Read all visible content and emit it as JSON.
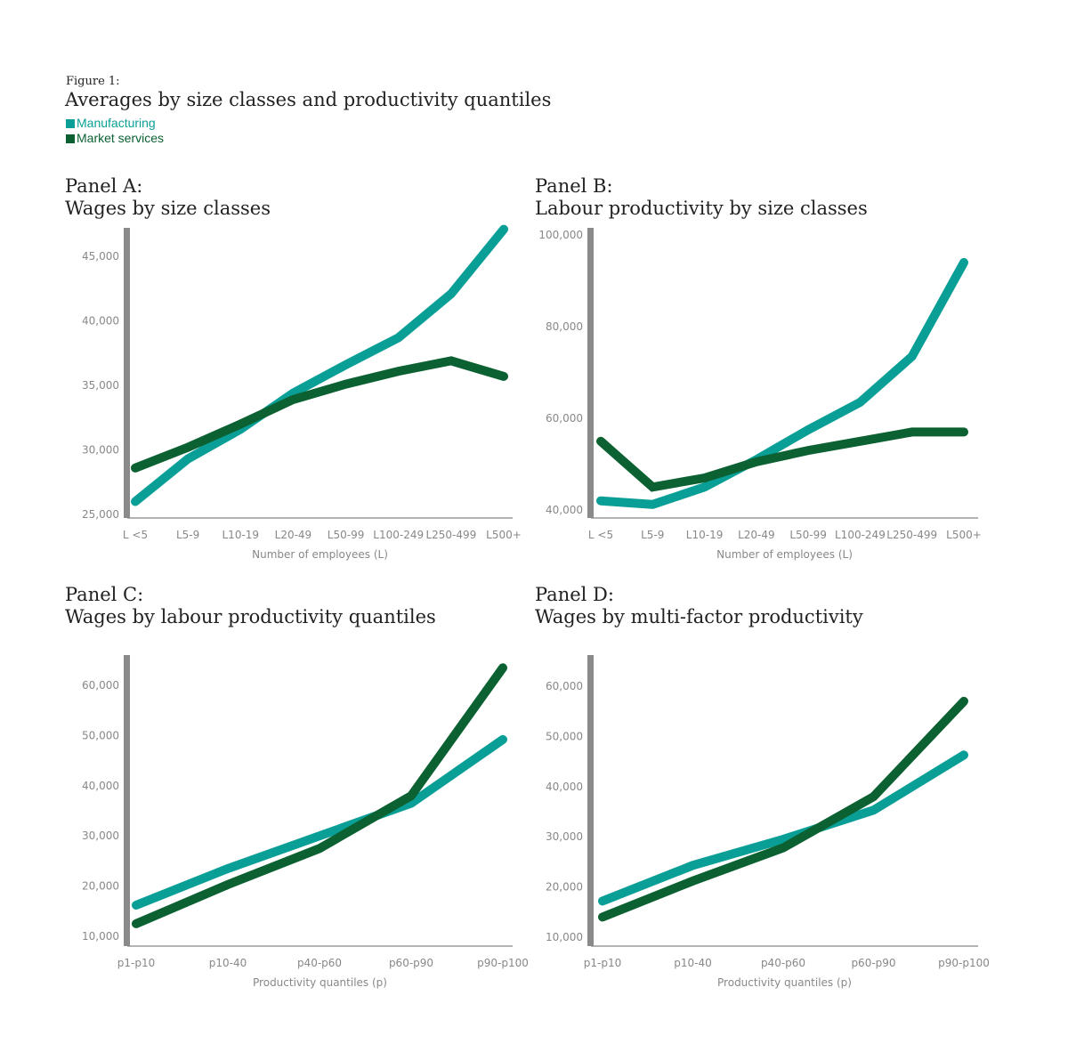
{
  "figure": {
    "label": "Figure 1:",
    "title": "Averages by size classes and productivity quantiles"
  },
  "legend": [
    {
      "name": "Manufacturing",
      "color": "#0a9f96"
    },
    {
      "name": "Market services",
      "color": "#0b6131"
    }
  ],
  "chart_data": [
    {
      "type": "line",
      "panel": "Panel A:",
      "title": "Wages by size classes",
      "xlabel": "Number of employees (L)",
      "ylabel": "",
      "categories": [
        "L <5",
        "L5-9",
        "L10-19",
        "L20-49",
        "L50-99",
        "L100-249",
        "L250-499",
        "L500+"
      ],
      "yticks": [
        25000,
        30000,
        35000,
        40000,
        45000
      ],
      "ytick_labels": [
        "25,000",
        "30,000",
        "35,000",
        "40,000",
        "45,000"
      ],
      "ylim": [
        25000,
        47500
      ],
      "series": [
        {
          "name": "Manufacturing",
          "values": [
            26000,
            29300,
            31600,
            34400,
            36600,
            38700,
            42100,
            47100
          ]
        },
        {
          "name": "Market services",
          "values": [
            28600,
            30200,
            32000,
            33900,
            35100,
            36100,
            36900,
            35700
          ]
        }
      ]
    },
    {
      "type": "line",
      "panel": "Panel B:",
      "title": "Labour productivity by size classes",
      "xlabel": "Number of employees (L)",
      "ylabel": "",
      "categories": [
        "L <5",
        "L5-9",
        "L10-19",
        "L20-49",
        "L50-99",
        "L100-249",
        "L250-499",
        "L500+"
      ],
      "yticks": [
        40000,
        60000,
        80000,
        100000
      ],
      "ytick_labels": [
        "40,000",
        "60,000",
        "80,000",
        "100,000"
      ],
      "ylim": [
        38000,
        100500
      ],
      "series": [
        {
          "name": "Manufacturing",
          "values": [
            42000,
            41200,
            45000,
            51000,
            57500,
            63500,
            73500,
            94000
          ]
        },
        {
          "name": "Market services",
          "values": [
            55000,
            45000,
            47000,
            50500,
            53000,
            55000,
            57000,
            57000
          ]
        }
      ]
    },
    {
      "type": "line",
      "panel": "Panel C:",
      "title": "Wages by labour productivity quantiles",
      "xlabel": "Productivity quantiles (p)",
      "ylabel": "",
      "categories": [
        "p1-p10",
        "p10-40",
        "p40-p60",
        "p60-p90",
        "p90-p100"
      ],
      "yticks": [
        10000,
        20000,
        30000,
        40000,
        50000,
        60000
      ],
      "ytick_labels": [
        "10,000",
        "20,000",
        "30,000",
        "40,000",
        "50,000",
        "60,000"
      ],
      "ylim": [
        8000,
        66000
      ],
      "series": [
        {
          "name": "Manufacturing",
          "values": [
            16200,
            23500,
            30000,
            36500,
            49200
          ]
        },
        {
          "name": "Market services",
          "values": [
            12500,
            20300,
            27500,
            38000,
            63500
          ]
        }
      ]
    },
    {
      "type": "line",
      "panel": "Panel D:",
      "title": "Wages by multi-factor productivity",
      "xlabel": "Productivity quantiles (p)",
      "ylabel": "",
      "categories": [
        "p1-p10",
        "p10-40",
        "p40-p60",
        "p60-p90",
        "p90-p100"
      ],
      "yticks": [
        10000,
        20000,
        30000,
        40000,
        50000,
        60000
      ],
      "ytick_labels": [
        "10,000",
        "20,000",
        "30,000",
        "40,000",
        "50,000",
        "60,000"
      ],
      "ylim": [
        8000,
        66000
      ],
      "series": [
        {
          "name": "Manufacturing",
          "values": [
            17200,
            24300,
            29500,
            35300,
            46300
          ]
        },
        {
          "name": "Market services",
          "values": [
            14000,
            21200,
            27800,
            38000,
            57000
          ]
        }
      ]
    }
  ]
}
